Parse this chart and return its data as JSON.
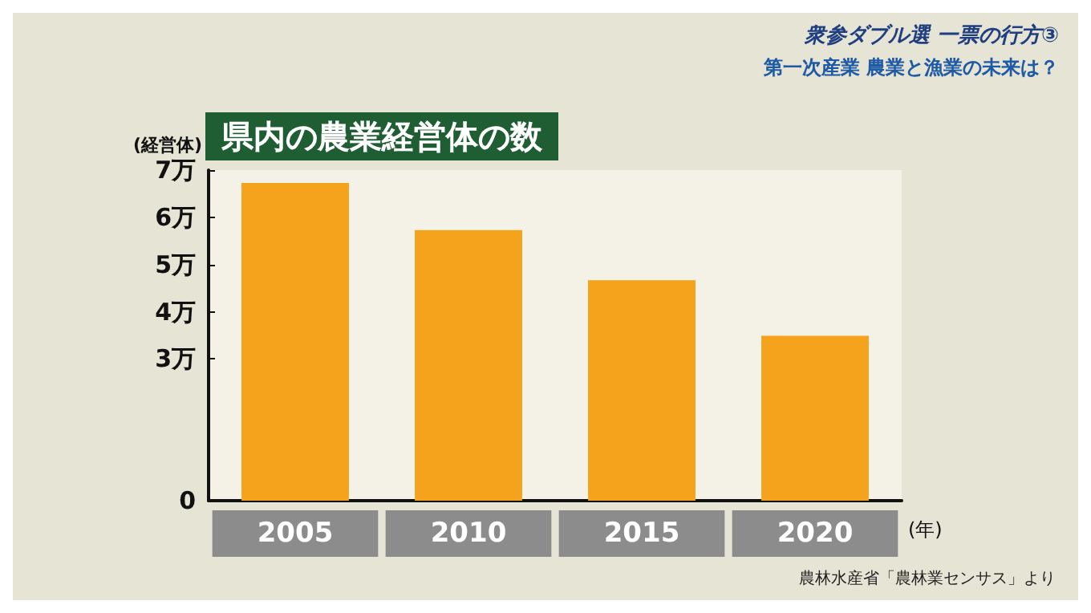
{
  "chart_data": {
    "type": "bar",
    "title": "県内の農業経営体の数",
    "ylabel": "(経営体)",
    "xlabel": "(年)",
    "annotations": [
      "衆参ダブル選 一票の行方③",
      "第一次産業 農業と漁業の未来は？",
      "農林水産省「農林業センサス」より"
    ],
    "categories": [
      "2005",
      "2010",
      "2015",
      "2020"
    ],
    "values": [
      6.73,
      5.73,
      4.67,
      3.49
    ],
    "color": "#f5a21c",
    "ylim": [
      0,
      7
    ],
    "yticks": [
      0,
      {
        "value": 3,
        "label": "3万"
      },
      {
        "value": 4,
        "label": "4万"
      },
      {
        "value": 5,
        "label": "5万"
      },
      {
        "value": 6,
        "label": "6万"
      },
      {
        "value": 7,
        "label": "7万"
      }
    ],
    "grid": false
  }
}
